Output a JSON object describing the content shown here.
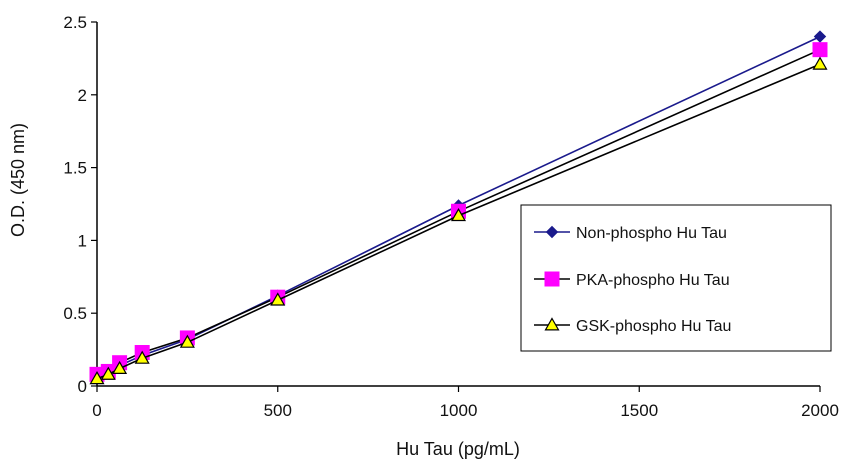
{
  "chart_data": {
    "type": "line",
    "xlabel": "Hu Tau (pg/mL)",
    "ylabel": "O.D. (450 nm)",
    "xlim": [
      0,
      2000
    ],
    "ylim": [
      0,
      2.5
    ],
    "x_ticks": [
      0,
      500,
      1000,
      1500,
      2000
    ],
    "y_ticks": [
      0,
      0.5,
      1,
      1.5,
      2,
      2.5
    ],
    "y_tick_labels": [
      "0",
      "0.5",
      "1",
      "1.5",
      "2",
      "2.5"
    ],
    "grid": false,
    "legend_placement": "right",
    "x": [
      0,
      31.25,
      62.5,
      125,
      250,
      500,
      1000,
      2000
    ],
    "series": [
      {
        "name": "Non-phospho Hu Tau",
        "values": [
          0.07,
          0.09,
          0.14,
          0.21,
          0.32,
          0.62,
          1.24,
          2.4
        ],
        "color": "#1a1a8c",
        "marker": "diamond"
      },
      {
        "name": "PKA-phospho Hu Tau",
        "values": [
          0.08,
          0.1,
          0.16,
          0.23,
          0.33,
          0.61,
          1.2,
          2.31
        ],
        "color": "#000000",
        "marker": "square",
        "marker_color": "#ff00ff"
      },
      {
        "name": "GSK-phospho Hu Tau",
        "values": [
          0.05,
          0.08,
          0.12,
          0.19,
          0.3,
          0.59,
          1.17,
          2.21
        ],
        "color": "#000000",
        "marker": "triangle",
        "marker_color": "#ffff00"
      }
    ]
  }
}
